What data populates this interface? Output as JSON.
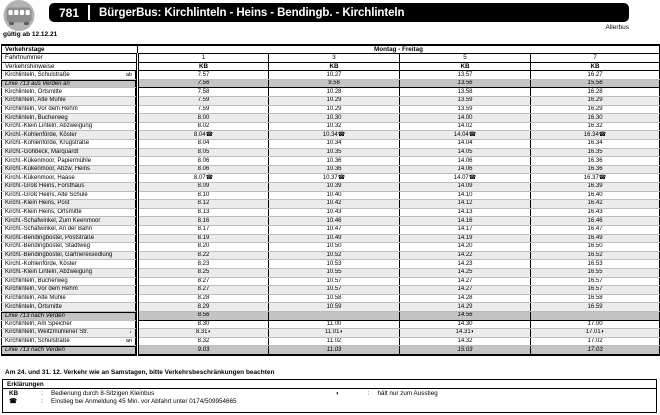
{
  "header": {
    "route_number": "781",
    "title": "BürgerBus: Kirchlinteln - Heins - Bendingb. - Kirchlinteln",
    "operator": "Allerbus",
    "valid_from": "gültig ab 12.12.21"
  },
  "timetable": {
    "days_header": {
      "label": "Verkehrstage",
      "value": "Montag - Freitag"
    },
    "trip_header": {
      "label": "Fahrtnummer",
      "values": [
        "1",
        "3",
        "5",
        "7"
      ]
    },
    "notes_header": {
      "label": "Verkehrshinweise",
      "values": [
        "KB",
        "KB",
        "KB",
        "KB"
      ]
    },
    "rows": [
      {
        "stop": "Kirchlinteln, Schulstraße",
        "marker": "ab",
        "type": "normal",
        "times": [
          "7.57",
          "10.27",
          "13.57",
          "16.27"
        ]
      },
      {
        "stop": "Linie 713 aus Verden an",
        "marker": "",
        "type": "linie",
        "times": [
          "7.56",
          "9.56",
          "13.56",
          "15.56"
        ]
      },
      {
        "stop": "Kirchlinteln, Ortsmitte",
        "marker": "",
        "type": "normal",
        "times": [
          "7.58",
          "10.28",
          "13.58",
          "16.28"
        ]
      },
      {
        "stop": "Kirchlinteln, Alte Mühle",
        "marker": "",
        "type": "normal",
        "times": [
          "7.59",
          "10.29",
          "13.59",
          "16.29"
        ]
      },
      {
        "stop": "Kirchlinteln, Vor dem Rehm",
        "marker": "",
        "type": "normal",
        "times": [
          "7.59",
          "10.29",
          "13.59",
          "16.29"
        ]
      },
      {
        "stop": "Kirchlinteln, Bucherweg",
        "marker": "",
        "type": "normal",
        "times": [
          "8.00",
          "10.30",
          "14.00",
          "16.30"
        ]
      },
      {
        "stop": "Kirchl.-Klein Linteln, Abzweigung",
        "marker": "",
        "type": "normal",
        "times": [
          "8.02",
          "10.32",
          "14.02",
          "16.32"
        ]
      },
      {
        "stop": "Kirchl.-Kohlenförde, Köster",
        "marker": "",
        "type": "normal",
        "times": [
          "8.04☎",
          "10.34☎",
          "14.04☎",
          "16.34☎"
        ]
      },
      {
        "stop": "Kirchl.-Kohlenförde, Krugstraße",
        "marker": "",
        "type": "normal",
        "times": [
          "8.04",
          "10.34",
          "14.04",
          "16.34"
        ]
      },
      {
        "stop": "Kirchl.-Gohbeck, Marquardt",
        "marker": "",
        "type": "normal",
        "times": [
          "8.05",
          "10.35",
          "14.05",
          "16.35"
        ]
      },
      {
        "stop": "Kirchl.-Kükenmoor, Papiermühle",
        "marker": "",
        "type": "normal",
        "times": [
          "8.06",
          "10.36",
          "14.06",
          "16.36"
        ]
      },
      {
        "stop": "Kirchl.-Kükenmoor, Abzw. Heins",
        "marker": "",
        "type": "normal",
        "times": [
          "8.06",
          "10.36",
          "14.06",
          "16.36"
        ]
      },
      {
        "stop": "Kirchl.-Kükenmoor, Haase",
        "marker": "",
        "type": "normal",
        "times": [
          "8.07☎",
          "10.37☎",
          "14.07☎",
          "16.37☎"
        ]
      },
      {
        "stop": "Kirchl.-Groß Heins, Forsthaus",
        "marker": "",
        "type": "normal",
        "times": [
          "8.09",
          "10.39",
          "14.09",
          "16.39"
        ]
      },
      {
        "stop": "Kirchl.-Groß Heins, Alte Schule",
        "marker": "",
        "type": "normal",
        "times": [
          "8.10",
          "10.40",
          "14.10",
          "16.40"
        ]
      },
      {
        "stop": "Kirchl.-Klein Heins, Post",
        "marker": "",
        "type": "normal",
        "times": [
          "8.12",
          "10.42",
          "14.12",
          "16.42"
        ]
      },
      {
        "stop": "Kirchl.-Klein Heins, Ortsmitte",
        "marker": "",
        "type": "normal",
        "times": [
          "8.13",
          "10.43",
          "14.13",
          "16.43"
        ]
      },
      {
        "stop": "Kirchl.-Schafwinkel, Zum Keenmoor",
        "marker": "",
        "type": "normal",
        "times": [
          "8.16",
          "10.46",
          "14.16",
          "16.46"
        ]
      },
      {
        "stop": "Kirchl.-Schafwinkel, An der Bahn",
        "marker": "",
        "type": "normal",
        "times": [
          "8.17",
          "10.47",
          "14.17",
          "16.47"
        ]
      },
      {
        "stop": "Kirchl.-Bendingbostel, Poststraße",
        "marker": "",
        "type": "normal",
        "times": [
          "8.19",
          "10.49",
          "14.19",
          "16.49"
        ]
      },
      {
        "stop": "Kirchl.-Bendingbostel, Stadtweg",
        "marker": "",
        "type": "normal",
        "times": [
          "8.20",
          "10.50",
          "14.20",
          "16.50"
        ]
      },
      {
        "stop": "Kirchl.-Bendingbostel, Gärtnereisiedlung",
        "marker": "",
        "type": "normal",
        "times": [
          "8.22",
          "10.52",
          "14.22",
          "16.52"
        ]
      },
      {
        "stop": "Kirchl.-Kohlenförde, Köster",
        "marker": "",
        "type": "normal",
        "times": [
          "8.23",
          "10.53",
          "14.23",
          "16.53"
        ]
      },
      {
        "stop": "Kirchl.-Klein Linteln, Abzweigung",
        "marker": "",
        "type": "normal",
        "times": [
          "8.25",
          "10.55",
          "14.25",
          "16.55"
        ]
      },
      {
        "stop": "Kirchlinteln, Bucherweg",
        "marker": "",
        "type": "normal",
        "times": [
          "8.27",
          "10.57",
          "14.27",
          "16.57"
        ]
      },
      {
        "stop": "Kirchlinteln, Vor dem Rehm",
        "marker": "",
        "type": "normal",
        "times": [
          "8.27",
          "10.57",
          "14.27",
          "16.57"
        ]
      },
      {
        "stop": "Kirchlinteln, Alte Mühle",
        "marker": "",
        "type": "normal",
        "times": [
          "8.28",
          "10.58",
          "14.28",
          "16.58"
        ]
      },
      {
        "stop": "Kirchlinteln, Ortsmitte",
        "marker": "",
        "type": "normal",
        "times": [
          "8.29",
          "10.59",
          "14.29",
          "16.59"
        ]
      },
      {
        "stop": "Linie 713 nach Verden",
        "marker": "",
        "type": "linie",
        "times": [
          "8.56",
          "",
          "14.56",
          ""
        ]
      },
      {
        "stop": "Kirchlinteln, Am Speicher",
        "marker": "",
        "type": "normal",
        "times": [
          "8.30",
          "11.00",
          "14.30",
          "17.00"
        ]
      },
      {
        "stop": "Kirchlinteln, Weitzmühlener Str.",
        "marker": "↓",
        "type": "normal",
        "times": [
          "8.31◗",
          "11.01◗",
          "14.31◗",
          "17.01◗"
        ]
      },
      {
        "stop": "Kirchlinteln, Schulstraße",
        "marker": "an",
        "type": "normal",
        "times": [
          "8.32",
          "11.02",
          "14.32",
          "17.02"
        ]
      },
      {
        "stop": "Linie 713 nach Verden",
        "marker": "",
        "type": "linie",
        "times": [
          "9.03",
          "11.03",
          "15.03",
          "17.03"
        ]
      }
    ]
  },
  "footer_note": "Am 24. und 31. 12. Verkehr wie an Samstagen, bitte Verkehrsbeschränkungen beachten",
  "legend": {
    "title": "Erklärungen",
    "left": [
      {
        "symbol": "KB",
        "text": "Bedienung durch 8-Sitzigen Kleinbus"
      },
      {
        "symbol": "☎",
        "text": "Einstieg bei Anmeldung 45 Min. vor Abfahrt unter 0174/509954665"
      }
    ],
    "right": [
      {
        "symbol": "◗",
        "text": "hält nur zum Ausstieg"
      }
    ]
  },
  "colors": {
    "row_alt": "#ebebeb",
    "row_special": "#c4c4c4",
    "bar": "#000000"
  }
}
